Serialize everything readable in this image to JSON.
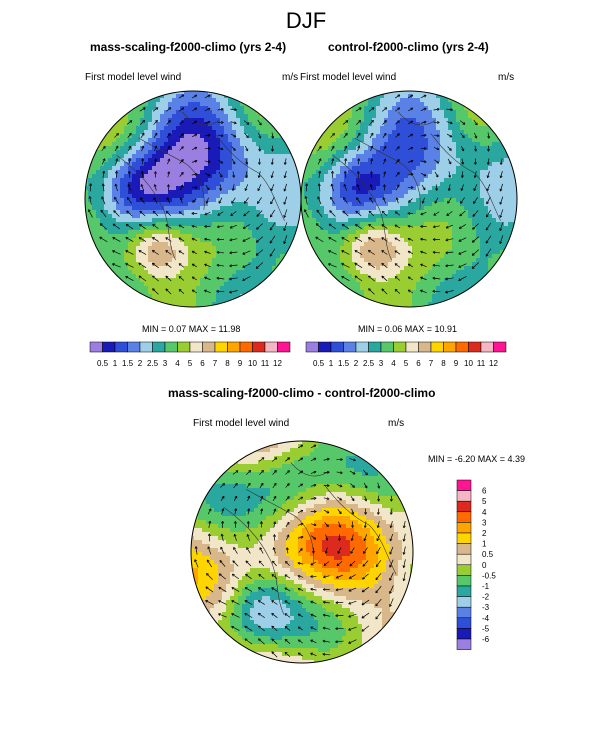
{
  "season": "DJF",
  "panels": [
    {
      "title": "mass-scaling-f2000-climo (yrs 2-4)",
      "left_label": "First model level wind",
      "units": "m/s",
      "minmax": "MIN =  0.07 MAX =  11.98"
    },
    {
      "title": "control-f2000-climo (yrs 2-4)",
      "left_label": "First model level wind",
      "units": "m/s",
      "minmax": "MIN =  0.06 MAX =  10.91"
    }
  ],
  "diff_panel": {
    "title": "mass-scaling-f2000-climo - control-f2000-climo",
    "left_label": "First model level wind",
    "units": "m/s",
    "minmax": "MIN =  -6.20 MAX =   4.39"
  },
  "colorbar_main": {
    "colors": [
      "#9b7fe0",
      "#1a1ab8",
      "#2f4fd8",
      "#5a82e6",
      "#9ecfe8",
      "#2aa8a0",
      "#56c86a",
      "#9acd32",
      "#f2e6c8",
      "#d8b88a",
      "#ffd500",
      "#ffa500",
      "#ff6a00",
      "#dc2a1e",
      "#f4b6c2",
      "#ff1493"
    ],
    "labels": [
      "0.5",
      "1",
      "1.5",
      "2",
      "2.5",
      "3",
      "4",
      "5",
      "6",
      "7",
      "8",
      "9",
      "10",
      "11",
      "12"
    ]
  },
  "colorbar_diff": {
    "colors": [
      "#ff1493",
      "#f4b6c2",
      "#dc2a1e",
      "#ff6a00",
      "#ffa500",
      "#ffd500",
      "#d8b88a",
      "#f2e6c8",
      "#9acd32",
      "#56c86a",
      "#2aa8a0",
      "#9ecfe8",
      "#5a82e6",
      "#2f4fd8",
      "#1a1ab8",
      "#9b7fe0"
    ],
    "labels": [
      "6",
      "5",
      "4",
      "3",
      "2",
      "1",
      "0.5",
      "0",
      "-0.5",
      "-1",
      "-2",
      "-3",
      "-4",
      "-5",
      "-6"
    ]
  }
}
